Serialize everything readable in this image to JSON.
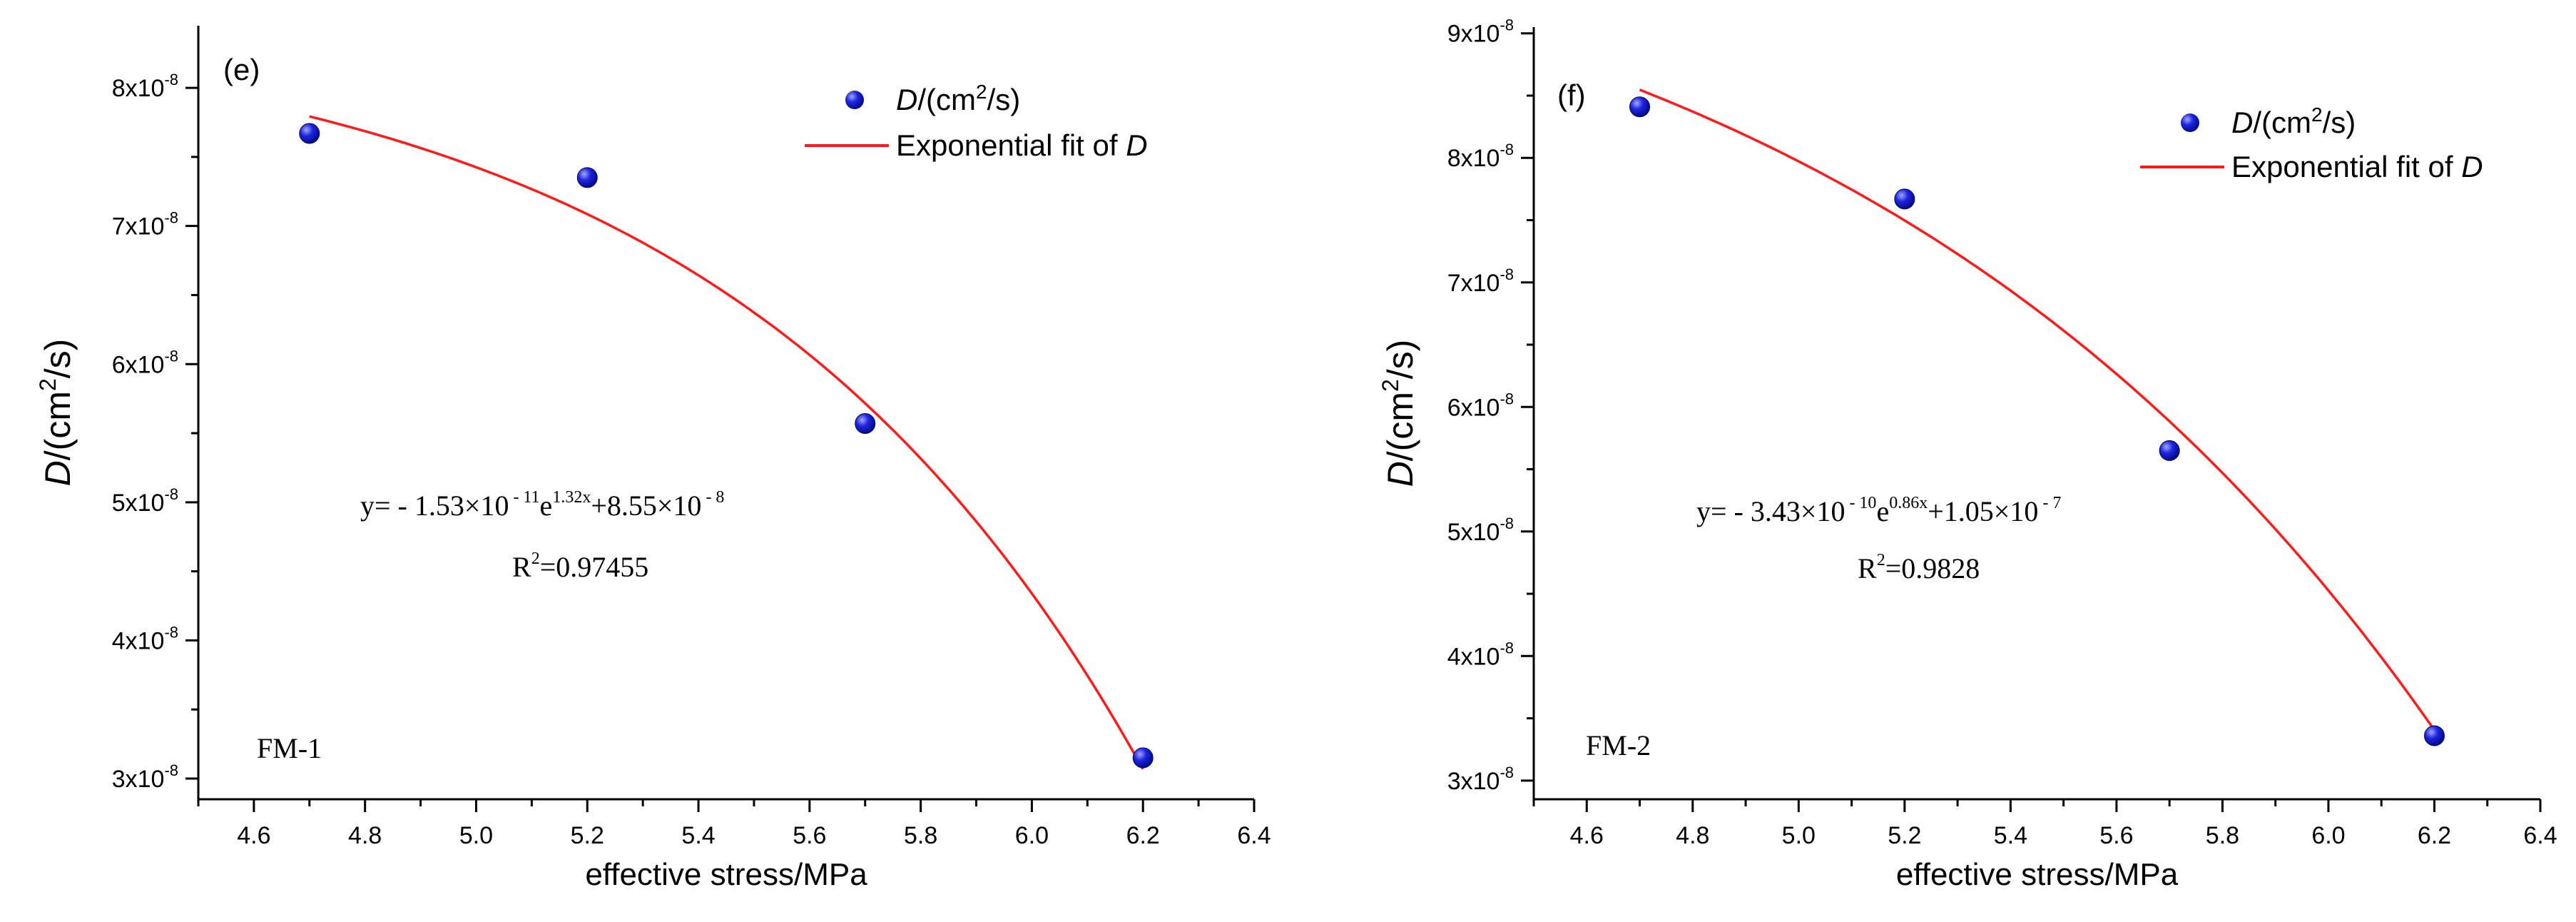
{
  "colors": {
    "axis": "#000000",
    "marker": "#1f24e0",
    "marker_highlight": "#9fa8ff",
    "fit_line": "#ff1a1a",
    "background": "#ffffff"
  },
  "chart_data": [
    {
      "type": "scatter",
      "panel_label": "(e)",
      "sample_label": "FM-1",
      "xlabel": "effective stress/MPa",
      "ylabel": {
        "main": "D/(cm",
        "sup": "2",
        "tail": "/s)"
      },
      "xlim": [
        4.5,
        6.4
      ],
      "ylim": [
        2.85e-08,
        8.45e-08
      ],
      "xticks": [
        4.6,
        4.8,
        5.0,
        5.2,
        5.4,
        5.6,
        5.8,
        6.0,
        6.2,
        6.4
      ],
      "xtick_labels": [
        "4.6",
        "4.8",
        "5.0",
        "5.2",
        "5.4",
        "5.6",
        "5.8",
        "6.0",
        "6.2",
        "6.4"
      ],
      "yticks": [
        3e-08,
        4e-08,
        5e-08,
        6e-08,
        7e-08,
        8e-08
      ],
      "ytick_labels": [
        {
          "mant": "3x10",
          "exp": "-8"
        },
        {
          "mant": "4x10",
          "exp": "-8"
        },
        {
          "mant": "5x10",
          "exp": "-8"
        },
        {
          "mant": "6x10",
          "exp": "-8"
        },
        {
          "mant": "7x10",
          "exp": "-8"
        },
        {
          "mant": "8x10",
          "exp": "-8"
        }
      ],
      "series": [
        {
          "name": "D/(cm2/s)",
          "kind": "points",
          "x": [
            4.7,
            5.2,
            5.7,
            6.2
          ],
          "y": [
            7.67e-08,
            7.35e-08,
            5.57e-08,
            3.15e-08
          ]
        },
        {
          "name": "Exponential fit of D",
          "kind": "fit",
          "model": "y = a*exp(b*x) + c",
          "a": -1.53e-11,
          "b": 1.32,
          "c": 8.55e-08,
          "x_range": [
            4.7,
            6.2
          ]
        }
      ],
      "legend": [
        {
          "pre": "D",
          "text": "/(cm",
          "sup": "2",
          "post": "/s)"
        },
        {
          "text": "Exponential fit of ",
          "italic": "D"
        }
      ],
      "equation": {
        "p1": "y= - 1.53×10",
        "s1": " - 11",
        "p2": "e",
        "s2": "1.32x",
        "p3": "+8.55×10",
        "s3": " - 8"
      },
      "r2": {
        "p1": "R",
        "s1": "2",
        "p2": "=0.97455"
      }
    },
    {
      "type": "scatter",
      "panel_label": "(f)",
      "sample_label": "FM-2",
      "xlabel": "effective stress/MPa",
      "ylabel": {
        "main": "D/(cm",
        "sup": "2",
        "tail": "/s)"
      },
      "xlim": [
        4.5,
        6.4
      ],
      "ylim": [
        2.85e-08,
        9.05e-08
      ],
      "xticks": [
        4.6,
        4.8,
        5.0,
        5.2,
        5.4,
        5.6,
        5.8,
        6.0,
        6.2,
        6.4
      ],
      "xtick_labels": [
        "4.6",
        "4.8",
        "5.0",
        "5.2",
        "5.4",
        "5.6",
        "5.8",
        "6.0",
        "6.2",
        "6.4"
      ],
      "yticks": [
        3e-08,
        4e-08,
        5e-08,
        6e-08,
        7e-08,
        8e-08,
        9e-08
      ],
      "ytick_labels": [
        {
          "mant": "3x10",
          "exp": "-8"
        },
        {
          "mant": "4x10",
          "exp": "-8"
        },
        {
          "mant": "5x10",
          "exp": "-8"
        },
        {
          "mant": "6x10",
          "exp": "-8"
        },
        {
          "mant": "7x10",
          "exp": "-8"
        },
        {
          "mant": "8x10",
          "exp": "-8"
        },
        {
          "mant": "9x10",
          "exp": "-8"
        }
      ],
      "series": [
        {
          "name": "D/(cm2/s)",
          "kind": "points",
          "x": [
            4.7,
            5.2,
            5.7,
            6.2
          ],
          "y": [
            8.41e-08,
            7.67e-08,
            5.65e-08,
            3.36e-08
          ]
        },
        {
          "name": "Exponential fit of D",
          "kind": "fit",
          "model": "y = a*exp(b*x) + c",
          "a": -3.43e-10,
          "b": 0.86,
          "c": 1.05e-07,
          "x_range": [
            4.7,
            6.2
          ]
        }
      ],
      "legend": [
        {
          "pre": "D",
          "text": "/(cm",
          "sup": "2",
          "post": "/s)"
        },
        {
          "text": "Exponential fit of ",
          "italic": "D"
        }
      ],
      "equation": {
        "p1": "y= - 3.43×10",
        "s1": " - 10",
        "p2": "e",
        "s2": "0.86x",
        "p3": "+1.05×10",
        "s3": " - 7"
      },
      "r2": {
        "p1": "R",
        "s1": "2",
        "p2": "=0.9828"
      }
    }
  ]
}
